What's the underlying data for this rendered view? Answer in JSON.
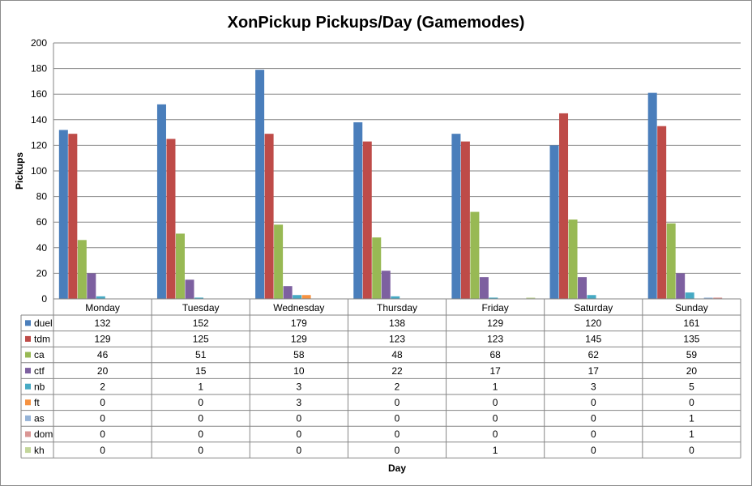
{
  "chart_data": {
    "type": "bar",
    "title": "XonPickup Pickups/Day (Gamemodes)",
    "xlabel": "Day",
    "ylabel": "Pickups",
    "ylim": [
      0,
      200
    ],
    "yticks": [
      0,
      20,
      40,
      60,
      80,
      100,
      120,
      140,
      160,
      180,
      200
    ],
    "grid": true,
    "legend": "data-table",
    "categories": [
      "Monday",
      "Tuesday",
      "Wednesday",
      "Thursday",
      "Friday",
      "Saturday",
      "Sunday"
    ],
    "series": [
      {
        "name": "duel",
        "color": "#4a7ebb",
        "values": [
          132,
          152,
          179,
          138,
          129,
          120,
          161
        ]
      },
      {
        "name": "tdm",
        "color": "#be4b48",
        "values": [
          129,
          125,
          129,
          123,
          123,
          145,
          135
        ]
      },
      {
        "name": "ca",
        "color": "#98b954",
        "values": [
          46,
          51,
          58,
          48,
          68,
          62,
          59
        ]
      },
      {
        "name": "ctf",
        "color": "#7d60a0",
        "values": [
          20,
          15,
          10,
          22,
          17,
          17,
          20
        ]
      },
      {
        "name": "nb",
        "color": "#46aac4",
        "values": [
          2,
          1,
          3,
          2,
          1,
          3,
          5
        ]
      },
      {
        "name": "ft",
        "color": "#f69240",
        "values": [
          0,
          0,
          3,
          0,
          0,
          0,
          0
        ]
      },
      {
        "name": "as",
        "color": "#95b3d7",
        "values": [
          0,
          0,
          0,
          0,
          0,
          0,
          1
        ]
      },
      {
        "name": "dom",
        "color": "#da9694",
        "values": [
          0,
          0,
          0,
          0,
          0,
          0,
          1
        ]
      },
      {
        "name": "kh",
        "color": "#c3d69b",
        "values": [
          0,
          0,
          0,
          0,
          1,
          0,
          0
        ]
      }
    ]
  }
}
